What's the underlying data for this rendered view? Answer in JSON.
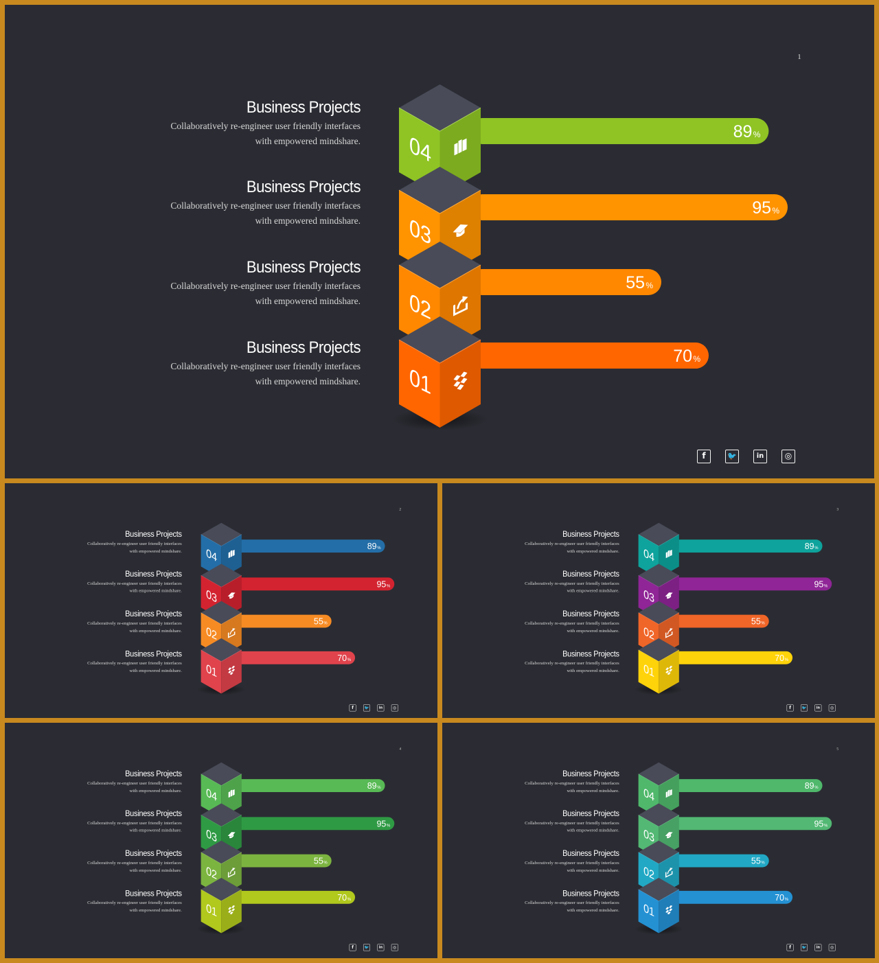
{
  "slides": [
    {
      "page": "1",
      "colors": [
        "#ff6600",
        "#ff8800",
        "#ff9300",
        "#8fc424"
      ]
    },
    {
      "page": "2",
      "colors": [
        "#e0434c",
        "#f68b24",
        "#d32330",
        "#236ea8"
      ]
    },
    {
      "page": "3",
      "colors": [
        "#ffd30a",
        "#f06528",
        "#8f2596",
        "#0ea39c"
      ]
    },
    {
      "page": "4",
      "colors": [
        "#b1c81d",
        "#7cb440",
        "#2f9a44",
        "#58ba55"
      ]
    },
    {
      "page": "5",
      "colors": [
        "#2491d3",
        "#21a8c4",
        "#52b873",
        "#4fb86b"
      ]
    }
  ],
  "items": [
    {
      "number": "01",
      "value": 70,
      "value_label": "70",
      "unit": "%",
      "title": "Business Projects",
      "desc_line1": "Collaboratively re-engineer user friendly interfaces",
      "desc_line2": "with empowered mindshare.",
      "icon": "dropbox-icon"
    },
    {
      "number": "02",
      "value": 55,
      "value_label": "55",
      "unit": "%",
      "title": "Business Projects",
      "desc_line1": "Collaboratively re-engineer user friendly interfaces",
      "desc_line2": "with empowered mindshare.",
      "icon": "share-box-icon"
    },
    {
      "number": "03",
      "value": 95,
      "value_label": "95",
      "unit": "%",
      "title": "Business Projects",
      "desc_line1": "Collaboratively re-engineer user friendly interfaces",
      "desc_line2": "with empowered mindshare.",
      "icon": "graduation-cap-icon"
    },
    {
      "number": "04",
      "value": 89,
      "value_label": "89",
      "unit": "%",
      "title": "Business Projects",
      "desc_line1": "Collaboratively re-engineer user friendly interfaces",
      "desc_line2": "with empowered mindshare.",
      "icon": "book-icon"
    }
  ],
  "social": {
    "facebook": "f",
    "twitter": "🐦",
    "linkedin": "in",
    "instagram": "◎"
  }
}
